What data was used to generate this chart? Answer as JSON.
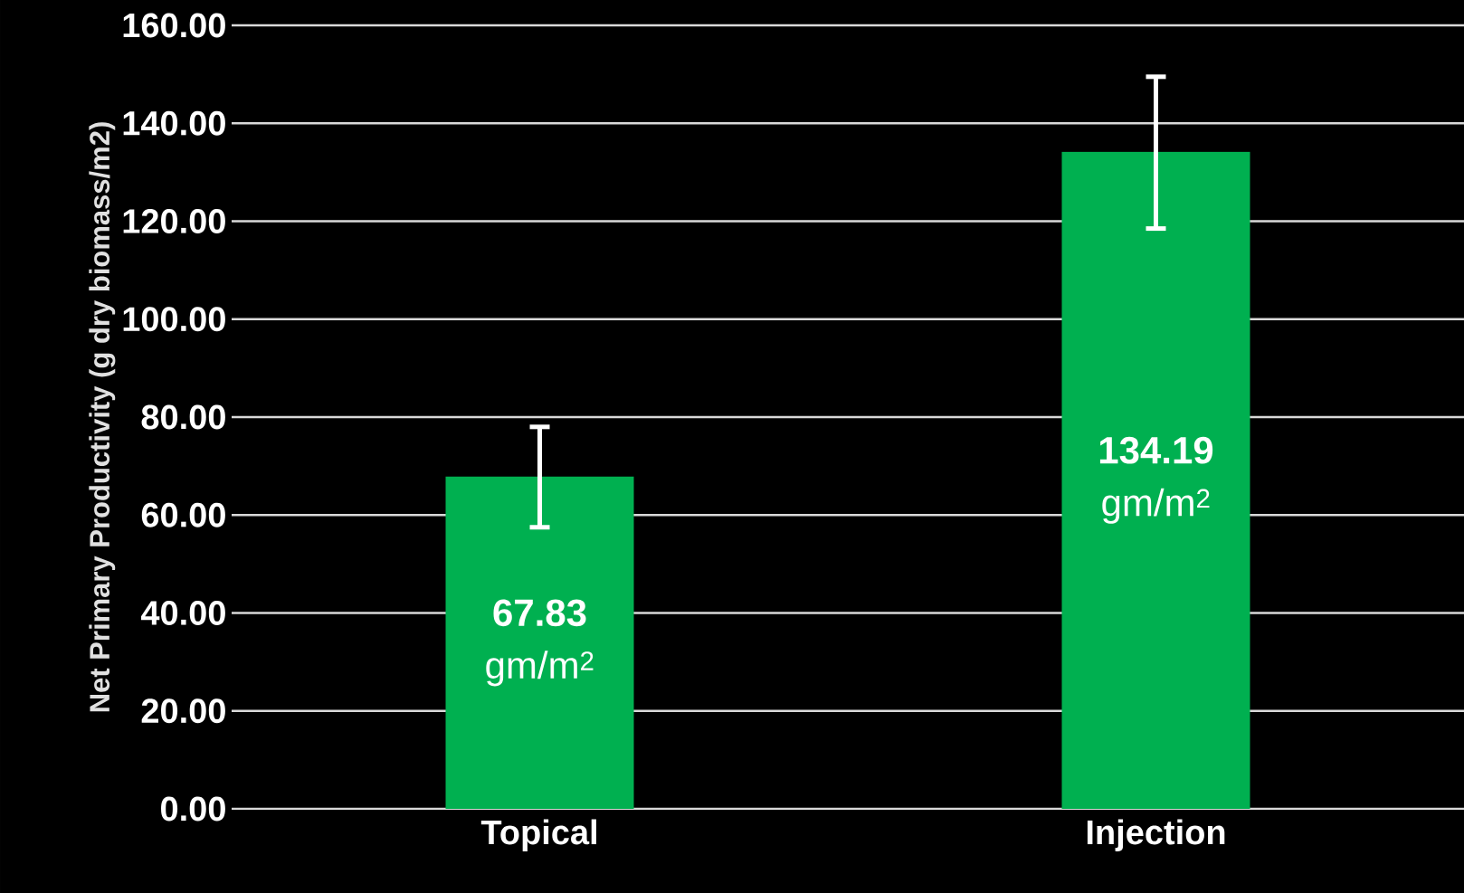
{
  "chart_data": {
    "type": "bar",
    "ylabel": "Net Primary Productivity (g dry biomass/m2)",
    "categories": [
      "Topical",
      "Injection"
    ],
    "values": [
      67.83,
      134.19
    ],
    "color": "#00b050",
    "errors": [
      [
        57.5,
        78
      ],
      [
        118.5,
        149.5
      ]
    ],
    "value_labels": [
      "**67.83** gm/m$^{2}$",
      "**134.19** gm/m$^{2}$"
    ],
    "ylim": [
      0,
      160
    ],
    "yticks": [
      {
        "value": 0,
        "label": "0.00"
      },
      {
        "value": 20,
        "label": "20.00"
      },
      {
        "value": 40,
        "label": "40.00"
      },
      {
        "value": 60,
        "label": "60.00"
      },
      {
        "value": 80,
        "label": "80.00"
      },
      {
        "value": 100,
        "label": "100.00"
      },
      {
        "value": 120,
        "label": "120.00"
      },
      {
        "value": 140,
        "label": "140.00"
      },
      {
        "value": 160,
        "label": "160.00"
      }
    ],
    "grid": "y"
  }
}
